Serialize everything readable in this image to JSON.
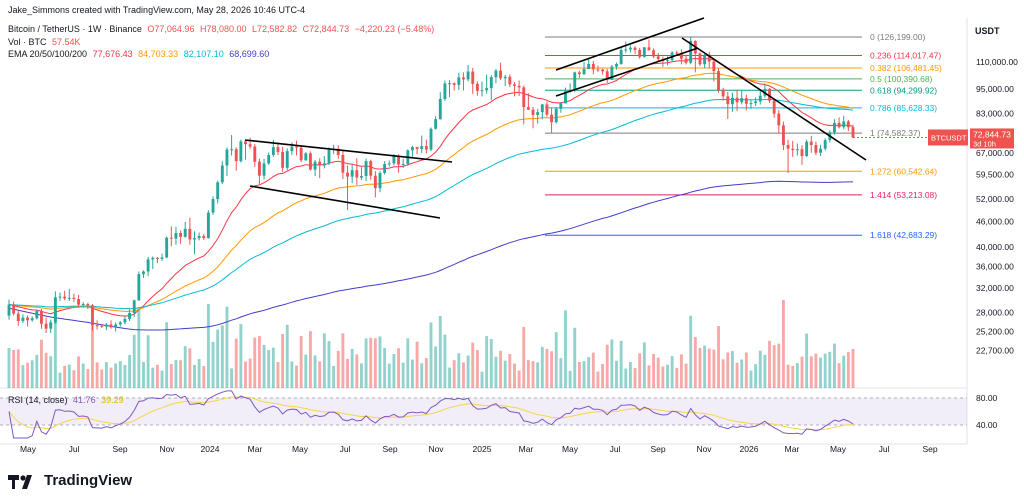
{
  "header": {
    "creator": "Jake_Simmons created with TradingView.com, May 28, 2026 10:46 UTC-4",
    "symbol_line": {
      "name": "Bitcoin / TetherUS · 1W · Binance",
      "open": "O77,064.96",
      "high": "H78,080.00",
      "low": "L72,582.82",
      "close": "C72,844.73",
      "change": "−4,220.23 (−5.48%)"
    },
    "vol_line": {
      "label": "Vol · BTC",
      "value": "57.54K"
    },
    "ema_line": {
      "label": "EMA 20/50/100/200",
      "values": [
        "77,676.43",
        "84,703.33",
        "82,107.10",
        "68,699.60"
      ]
    }
  },
  "currency": "USDT",
  "brand": "TradingView",
  "rsi_label": {
    "name": "RSI (14, close)",
    "v1": "41.76",
    "v2": "39.29"
  },
  "colors": {
    "up": "#26a69a",
    "down": "#ef5350",
    "ema20": "#f23645",
    "ema50": "#ff9800",
    "ema100": "#00bcd4",
    "ema200": "#3f3fc8",
    "rsi": "#7e57c2",
    "rsi_ma": "#f5d547",
    "trend": "#000000"
  },
  "chart_data": {
    "type": "candlestick",
    "interval": "1W",
    "x_ticks": [
      "May",
      "Jul",
      "Sep",
      "Nov",
      "2024",
      "Mar",
      "May",
      "Jul",
      "Sep",
      "Nov",
      "2025",
      "Mar",
      "May",
      "Jul",
      "Sep",
      "Nov",
      "2026",
      "Mar",
      "May",
      "Jul",
      "Sep"
    ],
    "y_ticks": [
      "110,000.00",
      "95,000.00",
      "83,000.00",
      "75,000.00",
      "67,000.00",
      "59,500.00",
      "52,000.00",
      "46,000.00",
      "40,000.00",
      "36,000.00",
      "32,000.00",
      "28,000.00",
      "25,200.00",
      "22,700.00"
    ],
    "y_scale": "log",
    "ylim": [
      20200,
      140000
    ],
    "price_label": {
      "symbol": "BTCUSDT",
      "price": "72,844.73",
      "countdown": "3d 10h"
    },
    "fib_levels": [
      {
        "label": "0 (126,199.00)",
        "price": 126199,
        "color": "#787b86"
      },
      {
        "label": "0.236 (114,017.47)",
        "price": 114017.47,
        "color": "#f23645"
      },
      {
        "label": "0.382 (106,481.45)",
        "price": 106481.45,
        "color": "#ff9800"
      },
      {
        "label": "0.5 (100,390.68)",
        "price": 100390.68,
        "color": "#4caf50"
      },
      {
        "label": "0.618 (94,299.92)",
        "price": 94299.92,
        "color": "#089981"
      },
      {
        "label": "0.786 (85,628.33)",
        "price": 85628.33,
        "color": "#00bcd4"
      },
      {
        "label": "1 (74,582.37)",
        "price": 74582.37,
        "color": "#787b86"
      },
      {
        "label": "1.272 (60,542.64)",
        "price": 60542.64,
        "color": "#ff9800"
      },
      {
        "label": "1.414 (53,213.08)",
        "price": 53213.08,
        "color": "#e91e63"
      },
      {
        "label": "1.618 (42,683.29)",
        "price": 42683.29,
        "color": "#2962ff"
      }
    ],
    "rsi_ticks": [
      "80.00",
      "40.00"
    ],
    "ohlc": [
      [
        27500,
        30000,
        26900,
        29200
      ],
      [
        29200,
        29700,
        27500,
        27800
      ],
      [
        27800,
        28400,
        26000,
        26700
      ],
      [
        26700,
        27700,
        26400,
        27200
      ],
      [
        27200,
        27500,
        25900,
        26800
      ],
      [
        26800,
        27400,
        26600,
        27100
      ],
      [
        27100,
        28400,
        26900,
        28200
      ],
      [
        28200,
        28500,
        25600,
        26300
      ],
      [
        26300,
        27200,
        25000,
        25600
      ],
      [
        25600,
        26900,
        25000,
        26500
      ],
      [
        26500,
        31400,
        26300,
        30400
      ],
      [
        30400,
        31200,
        29800,
        30500
      ],
      [
        30500,
        31500,
        29900,
        30200
      ],
      [
        30200,
        31800,
        29800,
        30300
      ],
      [
        30300,
        31000,
        29600,
        30100
      ],
      [
        30100,
        30800,
        28800,
        29200
      ],
      [
        29200,
        29600,
        28700,
        29300
      ],
      [
        29300,
        29500,
        28500,
        29100
      ],
      [
        29100,
        29300,
        25300,
        26100
      ],
      [
        26100,
        26800,
        25500,
        26000
      ],
      [
        26000,
        26300,
        25700,
        25900
      ],
      [
        25900,
        26400,
        25400,
        26200
      ],
      [
        26200,
        26800,
        25600,
        25800
      ],
      [
        25800,
        26500,
        25200,
        26200
      ],
      [
        26200,
        26700,
        25900,
        26500
      ],
      [
        26500,
        27500,
        26200,
        27000
      ],
      [
        27000,
        28500,
        26700,
        27900
      ],
      [
        27900,
        30000,
        27300,
        29900
      ],
      [
        29900,
        35000,
        29800,
        34500
      ],
      [
        34500,
        35200,
        33800,
        35000
      ],
      [
        35000,
        37900,
        34100,
        37400
      ],
      [
        37400,
        38000,
        35500,
        37700
      ],
      [
        37700,
        37900,
        36600,
        37500
      ],
      [
        37500,
        38600,
        37100,
        37800
      ],
      [
        37800,
        42400,
        37600,
        42100
      ],
      [
        42100,
        44800,
        40200,
        41900
      ],
      [
        41900,
        44700,
        40500,
        43200
      ],
      [
        43200,
        43800,
        40700,
        42300
      ],
      [
        42300,
        45900,
        42100,
        44200
      ],
      [
        44200,
        47000,
        40500,
        41700
      ],
      [
        41700,
        43600,
        38500,
        42000
      ],
      [
        42000,
        43300,
        41500,
        42500
      ],
      [
        42500,
        43000,
        41600,
        42000
      ],
      [
        42000,
        48900,
        41900,
        48300
      ],
      [
        48300,
        52800,
        47700,
        52000
      ],
      [
        52000,
        57500,
        50800,
        57000
      ],
      [
        57000,
        64000,
        56500,
        62500
      ],
      [
        62500,
        69000,
        59000,
        68200
      ],
      [
        68200,
        73800,
        66000,
        68300
      ],
      [
        68300,
        69000,
        60800,
        64000
      ],
      [
        64000,
        72000,
        63500,
        71300
      ],
      [
        71300,
        71700,
        64500,
        70200
      ],
      [
        70200,
        72800,
        68500,
        69300
      ],
      [
        69300,
        70300,
        62000,
        63800
      ],
      [
        63800,
        64900,
        56500,
        59100
      ],
      [
        59100,
        64800,
        57900,
        63200
      ],
      [
        63200,
        67100,
        62700,
        66200
      ],
      [
        66200,
        71900,
        65500,
        69100
      ],
      [
        69100,
        70900,
        66200,
        67300
      ],
      [
        67300,
        69200,
        60400,
        61700
      ],
      [
        61700,
        68600,
        60900,
        67600
      ],
      [
        67600,
        70900,
        66200,
        69300
      ],
      [
        69300,
        71600,
        66000,
        68900
      ],
      [
        68900,
        69500,
        63700,
        64300
      ],
      [
        64300,
        67200,
        64100,
        66800
      ],
      [
        66800,
        67500,
        60800,
        61100
      ],
      [
        61100,
        64400,
        59000,
        63800
      ],
      [
        63800,
        65000,
        58300,
        62500
      ],
      [
        62500,
        65800,
        61500,
        63200
      ],
      [
        63200,
        69000,
        62600,
        68000
      ],
      [
        68000,
        70000,
        66500,
        68500
      ],
      [
        68500,
        69800,
        64800,
        66200
      ],
      [
        66200,
        67800,
        58000,
        60100
      ],
      [
        60100,
        62500,
        49000,
        58800
      ],
      [
        58800,
        62800,
        56700,
        60900
      ],
      [
        60900,
        65000,
        56200,
        58500
      ],
      [
        58500,
        61900,
        57700,
        59000
      ],
      [
        59000,
        64900,
        57400,
        64000
      ],
      [
        64000,
        64500,
        57800,
        59100
      ],
      [
        59100,
        60600,
        52500,
        55200
      ],
      [
        55200,
        60600,
        54000,
        60000
      ],
      [
        60000,
        64000,
        59500,
        63000
      ],
      [
        63000,
        64200,
        62200,
        63200
      ],
      [
        63200,
        66500,
        62500,
        65900
      ],
      [
        65900,
        66400,
        60100,
        62800
      ],
      [
        62800,
        64800,
        61600,
        63000
      ],
      [
        63000,
        68300,
        62400,
        67900
      ],
      [
        67900,
        69600,
        65500,
        69100
      ],
      [
        69100,
        69200,
        66500,
        68400
      ],
      [
        68400,
        73600,
        66900,
        69500
      ],
      [
        69500,
        72000,
        66800,
        68200
      ],
      [
        68200,
        76900,
        67600,
        76400
      ],
      [
        76400,
        81800,
        76000,
        80500
      ],
      [
        80500,
        93300,
        80300,
        89900
      ],
      [
        89900,
        99500,
        89000,
        97900
      ],
      [
        97900,
        99800,
        90800,
        98000
      ],
      [
        98000,
        98400,
        94200,
        97100
      ],
      [
        97100,
        103800,
        94500,
        101200
      ],
      [
        101200,
        104000,
        94200,
        100100
      ],
      [
        100100,
        108300,
        99000,
        104500
      ],
      [
        104500,
        106600,
        92500,
        97700
      ],
      [
        97700,
        99000,
        91500,
        94000
      ],
      [
        94000,
        98900,
        91200,
        94300
      ],
      [
        94300,
        102700,
        92500,
        95400
      ],
      [
        95400,
        102500,
        89300,
        101300
      ],
      [
        101300,
        106000,
        98000,
        105000
      ],
      [
        105000,
        109600,
        99700,
        100700
      ],
      [
        100700,
        102500,
        96500,
        101500
      ],
      [
        101500,
        102800,
        96000,
        97400
      ],
      [
        97400,
        98700,
        91200,
        96600
      ],
      [
        96600,
        99500,
        91400,
        95800
      ],
      [
        95800,
        96800,
        78200,
        86000
      ],
      [
        86000,
        92800,
        84700,
        84800
      ],
      [
        84800,
        86100,
        76600,
        82400
      ],
      [
        82400,
        85200,
        78600,
        83700
      ],
      [
        83700,
        87600,
        80500,
        87300
      ],
      [
        87300,
        88700,
        81600,
        82500
      ],
      [
        82500,
        85700,
        74500,
        79200
      ],
      [
        79200,
        86000,
        78600,
        85200
      ],
      [
        85200,
        88400,
        83400,
        87800
      ],
      [
        87800,
        95700,
        87700,
        93800
      ],
      [
        93800,
        97900,
        93100,
        94500
      ],
      [
        94500,
        104400,
        93300,
        104000
      ],
      [
        104000,
        105000,
        100800,
        103000
      ],
      [
        103000,
        110200,
        102500,
        105900
      ],
      [
        105900,
        111900,
        106500,
        108900
      ],
      [
        108900,
        110700,
        102800,
        105700
      ],
      [
        105700,
        107900,
        104100,
        105600
      ],
      [
        105600,
        106100,
        102700,
        104600
      ],
      [
        104600,
        106000,
        98200,
        99800
      ],
      [
        99800,
        108300,
        100500,
        107300
      ],
      [
        107300,
        109700,
        105500,
        108900
      ],
      [
        108900,
        119000,
        108400,
        117500
      ],
      [
        117500,
        123200,
        115800,
        117900
      ],
      [
        117900,
        120600,
        116000,
        119000
      ],
      [
        119000,
        120000,
        114900,
        117600
      ],
      [
        117600,
        118900,
        112000,
        113200
      ],
      [
        113200,
        119400,
        112600,
        119300
      ],
      [
        119300,
        124500,
        117100,
        117400
      ],
      [
        117400,
        118600,
        112300,
        113500
      ],
      [
        113500,
        115700,
        110700,
        111800
      ],
      [
        111800,
        113400,
        107200,
        110600
      ],
      [
        110600,
        113400,
        108000,
        111200
      ],
      [
        111200,
        116800,
        110000,
        115900
      ],
      [
        115900,
        117000,
        114200,
        115300
      ],
      [
        115300,
        117900,
        108700,
        112100
      ],
      [
        112100,
        114500,
        108600,
        109600
      ],
      [
        109600,
        126199,
        108700,
        123500
      ],
      [
        123500,
        123900,
        104000,
        115300
      ],
      [
        115300,
        116100,
        107600,
        108700
      ],
      [
        108700,
        115000,
        106600,
        114500
      ],
      [
        114500,
        116400,
        106300,
        110300
      ],
      [
        110300,
        111200,
        98900,
        104700
      ],
      [
        104700,
        106200,
        93000,
        94500
      ],
      [
        94500,
        95600,
        89200,
        91200
      ],
      [
        91200,
        93400,
        80600,
        87400
      ],
      [
        87400,
        93000,
        83800,
        90500
      ],
      [
        90500,
        94600,
        84100,
        88300
      ],
      [
        88300,
        94300,
        87300,
        90300
      ],
      [
        90300,
        92000,
        84500,
        87600
      ],
      [
        87600,
        89500,
        85200,
        87900
      ],
      [
        87900,
        90700,
        86500,
        88700
      ],
      [
        88700,
        94800,
        87200,
        91500
      ],
      [
        91500,
        97900,
        90500,
        95000
      ],
      [
        95000,
        95500,
        88000,
        89100
      ],
      [
        89100,
        89800,
        81100,
        83000
      ],
      [
        83000,
        84600,
        74500,
        77800
      ],
      [
        77800,
        79500,
        68000,
        69900
      ],
      [
        69900,
        71900,
        60000,
        68500
      ],
      [
        68500,
        71500,
        65500,
        68000
      ],
      [
        68000,
        70500,
        66000,
        68300
      ],
      [
        68300,
        69800,
        62700,
        65800
      ],
      [
        65800,
        72000,
        65500,
        71200
      ],
      [
        71200,
        73500,
        67000,
        69900
      ],
      [
        69900,
        71200,
        66100,
        67000
      ],
      [
        67000,
        70000,
        65800,
        68500
      ],
      [
        68500,
        72500,
        67800,
        71800
      ],
      [
        71800,
        75800,
        70800,
        74900
      ],
      [
        74900,
        80500,
        74000,
        78900
      ],
      [
        78900,
        81300,
        76500,
        77064.96
      ],
      [
        77064.96,
        82000,
        76200,
        79500
      ],
      [
        79500,
        80200,
        75500,
        77064.96
      ],
      [
        77064.96,
        78080,
        72582.82,
        72844.73
      ]
    ],
    "series": [
      {
        "name": "EMA 20",
        "color": "#f23645"
      },
      {
        "name": "EMA 50",
        "color": "#ff9800"
      },
      {
        "name": "EMA 100",
        "color": "#00bcd4"
      },
      {
        "name": "EMA 200",
        "color": "#3f3fc8"
      }
    ]
  }
}
